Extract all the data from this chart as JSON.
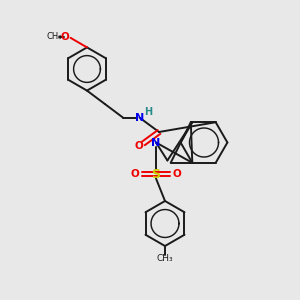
{
  "bg_color": "#e8e8e8",
  "bond_color": "#1a1a1a",
  "N_color": "#0000ee",
  "O_color": "#ee0000",
  "S_color": "#cccc00",
  "H_color": "#2a8a8a",
  "figsize": [
    3.0,
    3.0
  ],
  "dpi": 100,
  "xlim": [
    0,
    10
  ],
  "ylim": [
    0,
    10
  ]
}
